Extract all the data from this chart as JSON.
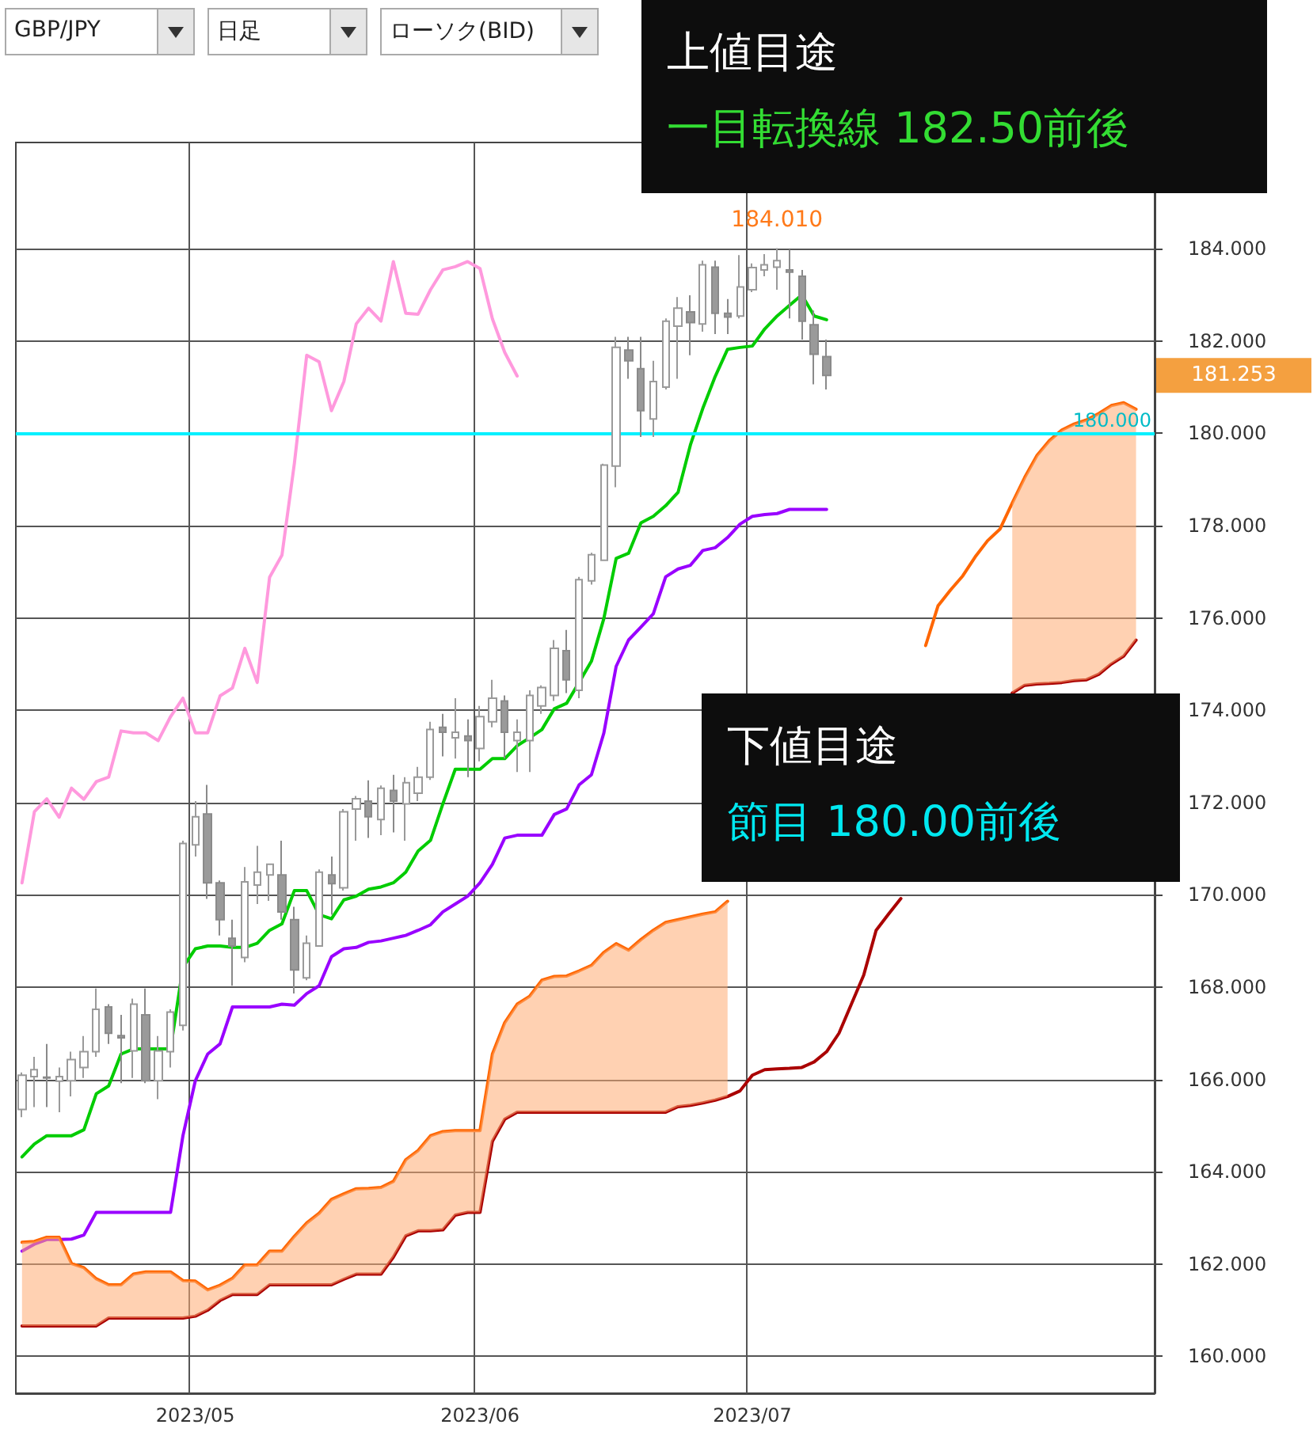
{
  "chart_data": {
    "type": "candlestick",
    "categories": [
      null,
      null,
      null,
      null,
      null,
      null,
      null,
      null,
      null,
      null,
      null,
      null,
      null,
      null,
      "2023/05",
      null,
      null,
      null,
      null,
      null,
      null,
      null,
      null,
      null,
      null,
      null,
      null,
      null,
      null,
      null,
      null,
      null,
      null,
      null,
      null,
      null,
      null,
      "2023/06",
      null,
      null,
      null,
      null,
      null,
      null,
      null,
      null,
      null,
      null,
      null,
      null,
      null,
      null,
      null,
      null,
      null,
      null,
      null,
      null,
      null,
      "2023/07",
      null,
      null,
      null,
      null,
      null,
      null,
      null,
      null,
      null,
      null,
      null,
      null,
      null,
      null,
      null,
      null,
      null,
      null,
      null,
      null,
      null,
      null,
      null,
      null,
      null,
      null,
      null,
      null,
      null,
      null,
      null,
      null
    ],
    "ohlc": [
      [
        165.35,
        166.15,
        165.18,
        166.09
      ],
      [
        166.06,
        166.49,
        165.4,
        166.21
      ],
      [
        166.05,
        166.77,
        165.4,
        166.03
      ],
      [
        165.96,
        166.26,
        165.29,
        166.06
      ],
      [
        165.97,
        166.6,
        165.63,
        166.43
      ],
      [
        166.26,
        166.94,
        166.03,
        166.6
      ],
      [
        166.6,
        167.97,
        166.49,
        167.52
      ],
      [
        167.57,
        167.63,
        166.77,
        167.0
      ],
      [
        166.95,
        167.4,
        165.92,
        166.9
      ],
      [
        166.62,
        167.75,
        166.03,
        167.63
      ],
      [
        167.4,
        167.97,
        165.92,
        165.97
      ],
      [
        165.97,
        166.94,
        165.57,
        166.62
      ],
      [
        166.6,
        167.52,
        166.26,
        167.46
      ],
      [
        167.17,
        171.17,
        167.06,
        171.11
      ],
      [
        171.08,
        172.03,
        170.83,
        171.69
      ],
      [
        171.75,
        172.38,
        169.91,
        170.26
      ],
      [
        170.26,
        170.31,
        169.12,
        169.46
      ],
      [
        169.06,
        169.46,
        168.03,
        168.89
      ],
      [
        168.64,
        170.6,
        168.54,
        170.28
      ],
      [
        170.21,
        171.06,
        169.8,
        170.49
      ],
      [
        170.43,
        170.66,
        169.87,
        170.66
      ],
      [
        170.43,
        171.17,
        169.46,
        169.63
      ],
      [
        169.46,
        169.74,
        167.86,
        168.37
      ],
      [
        168.2,
        169.12,
        168.15,
        168.95
      ],
      [
        168.89,
        170.55,
        168.89,
        170.49
      ],
      [
        170.43,
        170.83,
        169.57,
        170.24
      ],
      [
        170.15,
        171.86,
        170.09,
        171.8
      ],
      [
        171.86,
        172.14,
        171.17,
        172.08
      ],
      [
        172.03,
        172.48,
        171.23,
        171.69
      ],
      [
        171.63,
        172.37,
        171.29,
        172.31
      ],
      [
        172.26,
        172.6,
        171.35,
        172.03
      ],
      [
        171.97,
        172.55,
        171.17,
        172.43
      ],
      [
        172.2,
        172.77,
        172.03,
        172.55
      ],
      [
        172.55,
        173.75,
        172.49,
        173.58
      ],
      [
        173.63,
        173.92,
        173.0,
        173.52
      ],
      [
        173.4,
        174.26,
        172.95,
        173.52
      ],
      [
        173.44,
        173.8,
        172.55,
        173.34
      ],
      [
        173.17,
        174.09,
        172.89,
        173.86
      ],
      [
        173.75,
        174.66,
        173.63,
        174.26
      ],
      [
        174.2,
        174.32,
        172.95,
        173.52
      ],
      [
        173.34,
        173.8,
        172.66,
        173.52
      ],
      [
        173.34,
        174.43,
        172.66,
        174.32
      ],
      [
        174.09,
        174.54,
        173.92,
        174.49
      ],
      [
        174.32,
        175.52,
        174.2,
        175.34
      ],
      [
        175.29,
        175.74,
        174.37,
        174.66
      ],
      [
        174.43,
        176.89,
        174.26,
        176.83
      ],
      [
        176.8,
        177.41,
        176.72,
        177.37
      ],
      [
        177.25,
        179.34,
        177.23,
        179.31
      ],
      [
        179.29,
        182.09,
        178.83,
        181.86
      ],
      [
        181.8,
        182.09,
        181.18,
        181.57
      ],
      [
        181.4,
        182.09,
        179.92,
        180.49
      ],
      [
        180.31,
        181.57,
        179.92,
        181.12
      ],
      [
        181.0,
        182.49,
        180.95,
        182.43
      ],
      [
        182.32,
        182.95,
        181.18,
        182.71
      ],
      [
        182.63,
        182.99,
        181.69,
        182.4
      ],
      [
        182.37,
        183.74,
        182.2,
        183.65
      ],
      [
        183.6,
        183.74,
        182.15,
        182.6
      ],
      [
        182.6,
        182.91,
        182.15,
        182.52
      ],
      [
        182.54,
        183.86,
        182.49,
        183.17
      ],
      [
        183.11,
        183.68,
        183.06,
        183.59
      ],
      [
        183.54,
        183.88,
        183.4,
        183.65
      ],
      [
        183.6,
        184.01,
        183.11,
        183.74
      ],
      [
        183.54,
        183.98,
        182.49,
        183.49
      ],
      [
        183.4,
        183.54,
        182.03,
        182.43
      ],
      [
        182.35,
        182.66,
        181.06,
        181.71
      ],
      [
        181.66,
        182.03,
        180.95,
        181.253
      ],
      null,
      null,
      null,
      null,
      null,
      null,
      null,
      null,
      null,
      null,
      null,
      null,
      null,
      null,
      null,
      null,
      null,
      null,
      null,
      null,
      null,
      null,
      null,
      null,
      null,
      null
    ],
    "series": [
      {
        "type": "line",
        "color": "#ff99dd",
        "values": [
          170.26,
          171.8,
          172.08,
          171.68,
          172.31,
          172.07,
          172.45,
          172.55,
          173.55,
          173.51,
          173.51,
          173.34,
          173.86,
          174.26,
          173.51,
          173.51,
          174.31,
          174.48,
          175.34,
          174.6,
          176.88,
          177.36,
          179.34,
          181.69,
          181.55,
          180.49,
          181.12,
          182.37,
          182.71,
          182.43,
          183.72,
          182.6,
          182.58,
          183.11,
          183.54,
          183.61,
          183.72,
          183.57,
          182.48,
          181.75,
          181.24,
          null,
          null,
          null,
          null,
          null,
          null,
          null,
          null,
          null,
          null,
          null,
          null,
          null,
          null,
          null,
          null,
          null,
          null,
          null,
          null,
          null,
          null,
          null,
          null,
          null,
          null,
          null,
          null,
          null,
          null,
          null,
          null,
          null,
          null,
          null,
          null,
          null,
          null,
          null,
          null,
          null,
          null,
          null,
          null,
          null,
          null,
          null,
          null,
          null,
          null,
          null
        ]
      },
      {
        "type": "line",
        "color": "#00cc00",
        "values": [
          164.32,
          164.6,
          164.78,
          164.78,
          164.78,
          164.91,
          165.69,
          165.86,
          166.55,
          166.66,
          166.66,
          166.66,
          166.66,
          168.43,
          168.83,
          168.89,
          168.89,
          168.86,
          168.86,
          168.95,
          169.23,
          169.37,
          170.09,
          170.09,
          169.57,
          169.48,
          169.89,
          169.97,
          170.12,
          170.17,
          170.26,
          170.49,
          170.95,
          171.18,
          171.97,
          172.72,
          172.72,
          172.72,
          172.95,
          172.95,
          173.23,
          173.4,
          173.58,
          174.03,
          174.15,
          174.6,
          175.06,
          175.98,
          177.29,
          177.4,
          178.06,
          178.2,
          178.43,
          178.72,
          179.75,
          180.54,
          181.23,
          181.82,
          181.86,
          181.89,
          182.26,
          182.54,
          182.77,
          183.0,
          182.54,
          182.46,
          null,
          null,
          null,
          null,
          null,
          null,
          null,
          null,
          null,
          null,
          null,
          null,
          null,
          null,
          null,
          null,
          null,
          null,
          null,
          null,
          null,
          null,
          null,
          null,
          null,
          null
        ]
      },
      {
        "type": "line",
        "color": "#9900ff",
        "values": [
          162.28,
          162.43,
          162.53,
          162.53,
          162.54,
          162.63,
          163.12,
          163.12,
          163.12,
          163.12,
          163.12,
          163.12,
          163.12,
          164.78,
          165.97,
          166.55,
          166.77,
          167.57,
          167.57,
          167.57,
          167.57,
          167.63,
          167.61,
          167.86,
          168.03,
          168.66,
          168.83,
          168.86,
          168.97,
          169.0,
          169.06,
          169.12,
          169.23,
          169.35,
          169.63,
          169.8,
          169.97,
          170.26,
          170.66,
          171.23,
          171.29,
          171.29,
          171.29,
          171.74,
          171.86,
          172.38,
          172.6,
          173.5,
          174.95,
          175.52,
          175.8,
          176.09,
          176.89,
          177.06,
          177.14,
          177.46,
          177.52,
          177.74,
          178.03,
          178.2,
          178.24,
          178.26,
          178.35,
          178.35,
          178.35,
          178.35,
          null,
          null,
          null,
          null,
          null,
          null,
          null,
          null,
          null,
          null,
          null,
          null,
          null,
          null,
          null,
          null,
          null,
          null,
          null,
          null,
          null,
          null,
          null,
          null,
          null,
          null
        ]
      },
      {
        "type": "line",
        "color": "#ff6600",
        "lower": [
          160.66,
          160.66,
          160.66,
          160.66,
          160.66,
          160.66,
          160.66,
          160.83,
          160.83,
          160.83,
          160.83,
          160.83,
          160.83,
          160.83,
          160.87,
          161.0,
          161.21,
          161.34,
          161.34,
          161.34,
          161.55,
          161.55,
          161.55,
          161.55,
          161.55,
          161.55,
          161.67,
          161.78,
          161.78,
          161.78,
          162.15,
          162.61,
          162.72,
          162.72,
          162.74,
          163.06,
          163.12,
          163.12,
          164.66,
          165.14,
          165.29,
          165.29,
          165.29,
          165.29,
          165.29,
          165.29,
          165.29,
          165.29,
          165.29,
          165.29,
          165.29,
          165.29,
          165.29,
          165.41,
          165.44,
          165.49,
          165.55,
          165.63,
          null,
          null,
          null,
          null,
          null,
          null,
          null,
          null,
          null,
          null,
          null,
          null,
          null,
          null,
          null,
          null,
          null,
          null,
          null,
          null,
          null,
          null,
          174.37,
          174.54,
          174.57,
          174.58,
          174.6,
          174.64,
          174.66,
          174.78,
          175.0,
          175.17,
          175.52,
          null
        ],
        "upper": [
          162.47,
          162.49,
          162.58,
          162.58,
          162.01,
          161.92,
          161.68,
          161.55,
          161.55,
          161.78,
          161.83,
          161.83,
          161.83,
          161.64,
          161.63,
          161.44,
          161.54,
          161.69,
          161.98,
          161.98,
          162.28,
          162.28,
          162.6,
          162.89,
          163.1,
          163.4,
          163.52,
          163.63,
          163.64,
          163.66,
          163.79,
          164.26,
          164.46,
          164.78,
          164.87,
          164.89,
          164.89,
          164.89,
          166.55,
          167.23,
          167.63,
          167.8,
          168.15,
          168.23,
          168.24,
          168.35,
          168.47,
          168.75,
          168.94,
          168.8,
          169.03,
          169.23,
          169.4,
          169.46,
          169.52,
          169.58,
          169.63,
          169.86,
          null,
          null,
          null,
          null,
          null,
          null,
          null,
          null,
          null,
          null,
          null,
          null,
          null,
          null,
          null,
          null,
          null,
          null,
          null,
          null,
          null,
          null,
          178.49,
          179.04,
          179.52,
          179.84,
          180.07,
          180.2,
          180.29,
          180.43,
          180.6,
          180.66,
          180.52,
          null
        ],
        "values": [
          162.47,
          162.49,
          162.58,
          162.58,
          162.01,
          161.92,
          161.68,
          161.55,
          161.55,
          161.78,
          161.83,
          161.83,
          161.83,
          161.64,
          161.63,
          161.44,
          161.54,
          161.69,
          161.98,
          161.98,
          162.28,
          162.28,
          162.6,
          162.89,
          163.1,
          163.4,
          163.52,
          163.63,
          163.64,
          163.66,
          163.79,
          164.26,
          164.46,
          164.78,
          164.87,
          164.89,
          164.89,
          164.89,
          166.55,
          167.23,
          167.63,
          167.8,
          168.15,
          168.23,
          168.24,
          168.35,
          168.47,
          168.75,
          168.94,
          168.8,
          169.03,
          169.23,
          169.4,
          169.46,
          169.52,
          169.58,
          169.63,
          169.86,
          null,
          null,
          null,
          null,
          null,
          null,
          null,
          null,
          null,
          null,
          null,
          null,
          null,
          null,
          null,
          175.4,
          176.26,
          176.6,
          176.91,
          177.32,
          177.67,
          177.92,
          178.49,
          179.04,
          179.52,
          179.84,
          180.07,
          180.2,
          180.29,
          180.43,
          180.6,
          180.66,
          180.52,
          null
        ]
      },
      {
        "type": "line",
        "color": "#aa0000",
        "values": [
          160.66,
          160.66,
          160.66,
          160.66,
          160.66,
          160.66,
          160.66,
          160.83,
          160.83,
          160.83,
          160.83,
          160.83,
          160.83,
          160.83,
          160.87,
          161.0,
          161.21,
          161.34,
          161.34,
          161.34,
          161.55,
          161.55,
          161.55,
          161.55,
          161.55,
          161.55,
          161.67,
          161.78,
          161.78,
          161.78,
          162.15,
          162.61,
          162.72,
          162.72,
          162.74,
          163.06,
          163.12,
          163.12,
          164.66,
          165.14,
          165.29,
          165.29,
          165.29,
          165.29,
          165.29,
          165.29,
          165.29,
          165.29,
          165.29,
          165.29,
          165.29,
          165.29,
          165.29,
          165.41,
          165.44,
          165.49,
          165.55,
          165.63,
          165.75,
          166.09,
          166.21,
          166.23,
          166.24,
          166.26,
          166.38,
          166.6,
          167.0,
          167.63,
          168.26,
          169.23,
          169.58,
          169.92,
          null,
          null,
          null,
          null,
          null,
          null,
          null,
          null,
          174.37,
          174.54,
          174.57,
          174.58,
          174.6,
          174.64,
          174.66,
          174.78,
          175.0,
          175.17,
          175.52,
          null
        ]
      }
    ],
    "ylim": [
      159.2,
      186.3
    ],
    "yticks": [
      {
        "value": 160,
        "label": "160.000"
      },
      {
        "value": 162,
        "label": "162.000"
      },
      {
        "value": 164,
        "label": "164.000"
      },
      {
        "value": 166,
        "label": "166.000"
      },
      {
        "value": 168,
        "label": "168.000"
      },
      {
        "value": 170,
        "label": "170.000"
      },
      {
        "value": 172,
        "label": "172.000"
      },
      {
        "value": 174,
        "label": "174.000"
      },
      {
        "value": 176,
        "label": "176.000"
      },
      {
        "value": 178,
        "label": "178.000"
      },
      {
        "value": 180,
        "label": "180.000"
      },
      {
        "value": 182,
        "label": "182.000"
      },
      {
        "value": 184,
        "label": "184.000"
      }
    ],
    "grid": true,
    "marker": "none",
    "ref_lines": [
      {
        "axis": "y",
        "value": 180,
        "label": "180.000",
        "color": "#00f0ff"
      }
    ],
    "annotations": [
      "GBP/JPY",
      "日足",
      "ローソク(BID)",
      "上値目途",
      "一目転換線 182.50前後",
      "下値目途",
      "節目 180.00前後",
      {
        "text": "184.010",
        "y": 184.01
      },
      "181.253"
    ]
  }
}
